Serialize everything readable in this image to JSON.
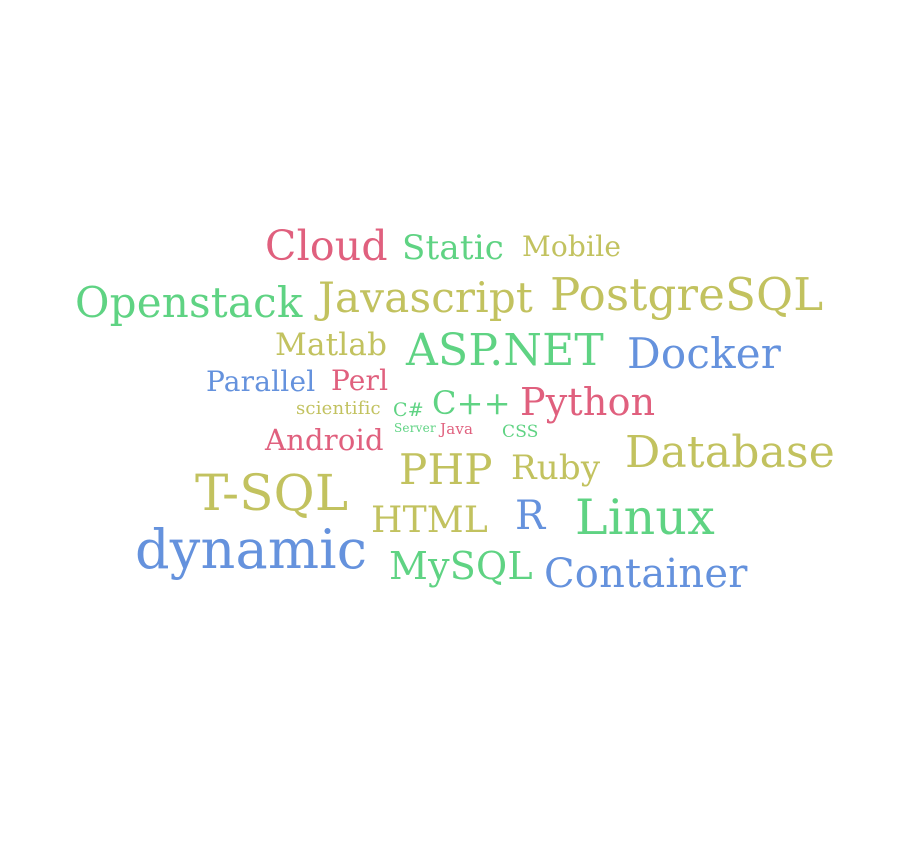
{
  "palette": {
    "pink": "#e0607e",
    "green": "#5fd383",
    "olive": "#c2c25f",
    "blue": "#6592dd",
    "background": "#ffffff"
  },
  "words": [
    {
      "id": "cloud",
      "text": "Cloud",
      "color": "pink"
    },
    {
      "id": "static",
      "text": "Static",
      "color": "green"
    },
    {
      "id": "mobile",
      "text": "Mobile",
      "color": "olive"
    },
    {
      "id": "openstack",
      "text": "Openstack",
      "color": "green"
    },
    {
      "id": "javascript",
      "text": "Javascript",
      "color": "olive"
    },
    {
      "id": "postgresql",
      "text": "PostgreSQL",
      "color": "olive"
    },
    {
      "id": "matlab",
      "text": "Matlab",
      "color": "olive"
    },
    {
      "id": "asp-net",
      "text": "ASP.NET",
      "color": "green"
    },
    {
      "id": "docker",
      "text": "Docker",
      "color": "blue"
    },
    {
      "id": "parallel",
      "text": "Parallel",
      "color": "blue"
    },
    {
      "id": "perl",
      "text": "Perl",
      "color": "pink"
    },
    {
      "id": "scientific",
      "text": "scientific",
      "color": "olive"
    },
    {
      "id": "csharp",
      "text": "C#",
      "color": "green"
    },
    {
      "id": "cpp",
      "text": "C++",
      "color": "green"
    },
    {
      "id": "python",
      "text": "Python",
      "color": "pink"
    },
    {
      "id": "android",
      "text": "Android",
      "color": "pink"
    },
    {
      "id": "server",
      "text": "Server",
      "color": "green"
    },
    {
      "id": "java",
      "text": "Java",
      "color": "pink"
    },
    {
      "id": "css",
      "text": "CSS",
      "color": "green"
    },
    {
      "id": "database",
      "text": "Database",
      "color": "olive"
    },
    {
      "id": "php",
      "text": "PHP",
      "color": "olive"
    },
    {
      "id": "ruby",
      "text": "Ruby",
      "color": "olive"
    },
    {
      "id": "t-sql",
      "text": "T-SQL",
      "color": "olive"
    },
    {
      "id": "html",
      "text": "HTML",
      "color": "olive"
    },
    {
      "id": "r",
      "text": "R",
      "color": "blue"
    },
    {
      "id": "linux",
      "text": "Linux",
      "color": "green"
    },
    {
      "id": "dynamic",
      "text": "dynamic",
      "color": "blue"
    },
    {
      "id": "mysql",
      "text": "MySQL",
      "color": "green"
    },
    {
      "id": "container",
      "text": "Container",
      "color": "blue"
    }
  ]
}
